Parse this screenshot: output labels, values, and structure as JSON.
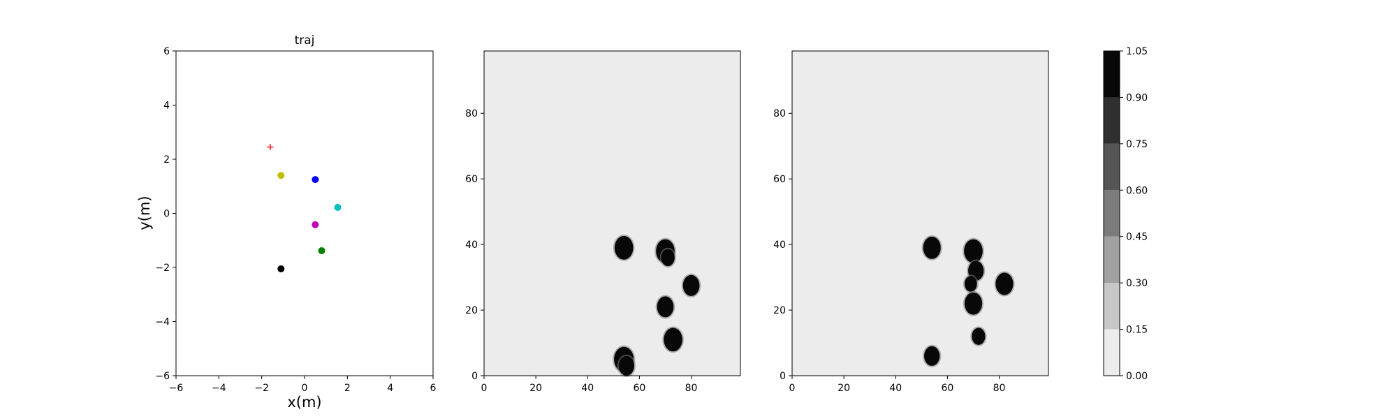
{
  "chart_data": [
    {
      "type": "scatter",
      "title": "traj",
      "xlabel": "x(m)",
      "ylabel": "y(m)",
      "xlim": [
        -6,
        6
      ],
      "ylim": [
        -6,
        6
      ],
      "xticks": [
        -6,
        -4,
        -2,
        0,
        2,
        4,
        6
      ],
      "yticks": [
        -6,
        -4,
        -2,
        0,
        2,
        4,
        6
      ],
      "grid": false,
      "series": [
        {
          "marker": "plus",
          "color": "#ff0000",
          "points": [
            [
              -1.6,
              2.45
            ]
          ]
        },
        {
          "marker": "dot",
          "color": "#bfbf00",
          "points": [
            [
              -1.1,
              1.4
            ]
          ]
        },
        {
          "marker": "dot",
          "color": "#0000ff",
          "points": [
            [
              0.5,
              1.25
            ]
          ]
        },
        {
          "marker": "dot",
          "color": "#00bfbf",
          "points": [
            [
              1.55,
              0.22
            ]
          ]
        },
        {
          "marker": "dot",
          "color": "#bf00bf",
          "points": [
            [
              0.5,
              -0.42
            ]
          ]
        },
        {
          "marker": "dot",
          "color": "#008000",
          "points": [
            [
              0.8,
              -1.38
            ]
          ]
        },
        {
          "marker": "dot",
          "color": "#000000",
          "points": [
            [
              -1.1,
              -2.05
            ]
          ]
        }
      ]
    },
    {
      "type": "heatmap",
      "title": "",
      "xlim": [
        0,
        99
      ],
      "ylim": [
        0,
        99
      ],
      "xticks": [
        0,
        20,
        40,
        60,
        80
      ],
      "yticks": [
        0,
        20,
        40,
        60,
        80
      ],
      "background_value": 0.05,
      "blobs": [
        {
          "x": 54,
          "y": 39,
          "r": 3.6
        },
        {
          "x": 70,
          "y": 38,
          "r": 3.6
        },
        {
          "x": 71,
          "y": 36,
          "r": 2.6
        },
        {
          "x": 80,
          "y": 27.5,
          "r": 3.2
        },
        {
          "x": 70,
          "y": 21,
          "r": 3.2
        },
        {
          "x": 73,
          "y": 11,
          "r": 3.6
        },
        {
          "x": 54,
          "y": 5,
          "r": 3.8
        },
        {
          "x": 55,
          "y": 3,
          "r": 3.0
        }
      ]
    },
    {
      "type": "heatmap",
      "title": "",
      "xlim": [
        0,
        99
      ],
      "ylim": [
        0,
        99
      ],
      "xticks": [
        0,
        20,
        40,
        60,
        80
      ],
      "yticks": [
        0,
        20,
        40,
        60,
        80
      ],
      "background_value": 0.05,
      "blobs": [
        {
          "x": 54,
          "y": 39,
          "r": 3.4
        },
        {
          "x": 70,
          "y": 38,
          "r": 3.6
        },
        {
          "x": 71,
          "y": 32,
          "r": 3.0
        },
        {
          "x": 69,
          "y": 28,
          "r": 2.4
        },
        {
          "x": 70,
          "y": 22,
          "r": 3.4
        },
        {
          "x": 82,
          "y": 28,
          "r": 3.4
        },
        {
          "x": 72,
          "y": 12,
          "r": 2.6
        },
        {
          "x": 54,
          "y": 6,
          "r": 3.0
        }
      ]
    }
  ],
  "colorbar": {
    "levels": [
      0.0,
      0.15,
      0.3,
      0.45,
      0.6,
      0.75,
      0.9,
      1.05
    ],
    "tick_labels": [
      "0.00",
      "0.15",
      "0.30",
      "0.45",
      "0.60",
      "0.75",
      "0.90",
      "1.05"
    ],
    "band_colors": [
      "#ececec",
      "#c7c7c7",
      "#a1a1a1",
      "#7b7b7b",
      "#555555",
      "#2f2f2f",
      "#080808"
    ]
  }
}
